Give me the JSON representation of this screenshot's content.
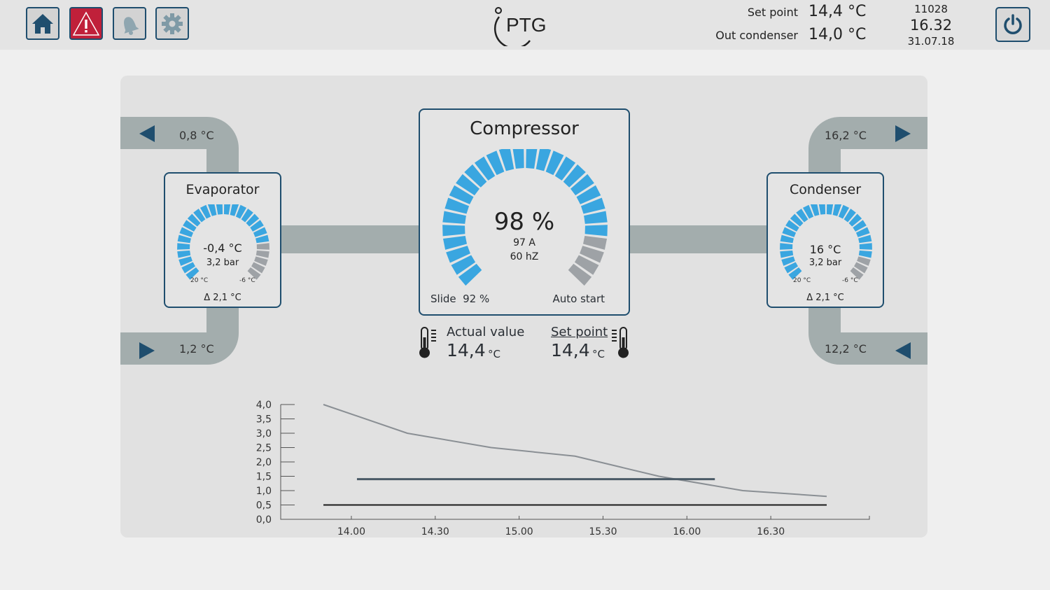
{
  "header": {
    "nav": [
      "home-icon",
      "warning-icon",
      "bell-icon",
      "gear-icon"
    ],
    "logo": "PTG",
    "setpoint_label": "Set point",
    "setpoint_value": "14,4 °C",
    "outcond_label": "Out condenser",
    "outcond_value": "14,0 °C",
    "code": "11028",
    "time": "16.32",
    "date": "31.07.18",
    "power_icon": "power-icon"
  },
  "evaporator": {
    "title": "Evaporator",
    "temp": "-0,4 °C",
    "pressure": "3,2 bar",
    "scale_min": "20 °C",
    "scale_max": "-6 °C",
    "delta": "Δ 2,1 °C",
    "pipe_top": "0,8 °C",
    "pipe_bottom": "1,2 °C",
    "level": 0.8
  },
  "condenser": {
    "title": "Condenser",
    "temp": "16 °C",
    "pressure": "3,2 bar",
    "scale_min": "20 °C",
    "scale_max": "-6 °C",
    "delta": "Δ 2,1 °C",
    "pipe_top": "16,2 °C",
    "pipe_bottom": "12,2 °C",
    "level": 0.9
  },
  "compressor": {
    "title": "Compressor",
    "percent": "98 %",
    "current": "97 A",
    "freq": "60 hZ",
    "slide": "Slide  92 %",
    "mode": "Auto start",
    "level": 0.86
  },
  "readouts": {
    "actual_label": "Actual value",
    "actual_value": "14,4",
    "actual_unit": "°C",
    "set_label": "Set point",
    "set_value": "14,4",
    "set_unit": "°C"
  },
  "colors": {
    "accent": "#3aa6e0",
    "inactive": "#9ea2a6",
    "frame": "#1f4e6e",
    "pipe": "#a3adad",
    "alert": "#c0203a"
  },
  "chart_data": {
    "type": "line",
    "x": [
      "14.00",
      "14.30",
      "15.00",
      "15.30",
      "16.00",
      "16.30"
    ],
    "y_ticks": [
      "0,0",
      "0,5",
      "1,0",
      "1,5",
      "2,0",
      "2,5",
      "3,0",
      "3,5",
      "4,0"
    ],
    "ylim": [
      0,
      4
    ],
    "xlim": [
      "13.50",
      "16.50"
    ],
    "series": [
      {
        "points": [
          [
            "13.50",
            4.0
          ],
          [
            "14.20",
            3.0
          ],
          [
            "14.50",
            2.5
          ],
          [
            "15.20",
            2.2
          ],
          [
            "15.50",
            1.5
          ],
          [
            "16.20",
            1.0
          ],
          [
            "16.50",
            0.8
          ]
        ],
        "color": "#8a8f94"
      },
      {
        "points": [
          [
            "14.02",
            1.4
          ],
          [
            "16.10",
            1.4
          ]
        ],
        "color": "#4a5a66"
      },
      {
        "points": [
          [
            "13.50",
            0.5
          ],
          [
            "16.50",
            0.5
          ]
        ],
        "color": "#1a1a1a"
      }
    ]
  }
}
